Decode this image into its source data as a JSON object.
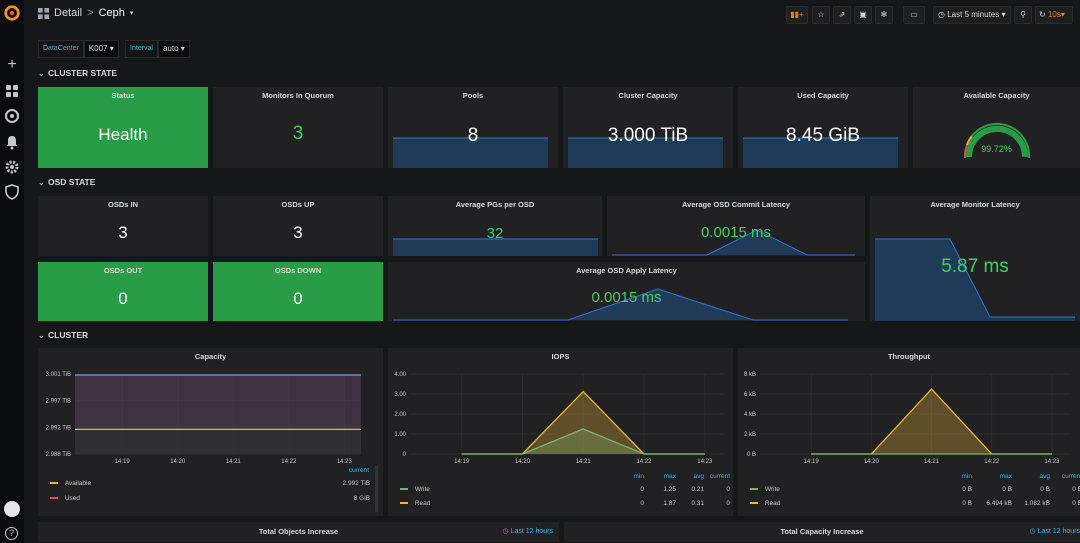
{
  "nav": {
    "breadcrumb_parent": "Detail",
    "breadcrumb_sep": ">",
    "breadcrumb_title": "Ceph",
    "time_range": "Last 5 minutes",
    "refresh_interval": "10s"
  },
  "vars": {
    "datacenter_label": "DataCenter",
    "datacenter_value": "K007",
    "interval_label": "Interval",
    "interval_value": "auto"
  },
  "rows": {
    "cluster_state": "CLUSTER STATE",
    "osd_state": "OSD STATE",
    "cluster": "CLUSTER"
  },
  "stat": {
    "status": {
      "title": "Status",
      "value": "Health"
    },
    "monitors": {
      "title": "Monitors In Quorum",
      "value": "3"
    },
    "pools": {
      "title": "Pools",
      "value": "8"
    },
    "capacity": {
      "title": "Cluster Capacity",
      "value": "3.000 TiB"
    },
    "used": {
      "title": "Used Capacity",
      "value": "8.45 GiB"
    },
    "available": {
      "title": "Available Capacity",
      "value": "99.72%",
      "fraction": 0.9972
    },
    "osds_in": {
      "title": "OSDs IN",
      "value": "3"
    },
    "osds_up": {
      "title": "OSDs UP",
      "value": "3"
    },
    "osds_out": {
      "title": "OSDs OUT",
      "value": "0"
    },
    "osds_down": {
      "title": "OSDs DOWN",
      "value": "0"
    },
    "avg_pgs": {
      "title": "Average PGs per OSD",
      "value": "32"
    },
    "commit_lat": {
      "title": "Average OSD Commit Latency",
      "value": "0.0015 ms"
    },
    "apply_lat": {
      "title": "Average OSD Apply Latency",
      "value": "0.0015 ms"
    },
    "monitor_lat": {
      "title": "Average Monitor Latency",
      "value": "5.87 ms"
    }
  },
  "graphs": {
    "capacity": {
      "title": "Capacity",
      "current_label": "current",
      "legend": [
        {
          "name": "Available",
          "color": "#eab839",
          "current": "2.992 TiB"
        },
        {
          "name": "Used",
          "color": "#e24d42",
          "current": "8 GiB"
        }
      ]
    },
    "iops": {
      "title": "IOPS",
      "headers": [
        "min",
        "max",
        "avg",
        "current"
      ],
      "legend": [
        {
          "name": "Write",
          "color": "#7eb26d",
          "min": "0",
          "max": "1.25",
          "avg": "0.21",
          "current": "0"
        },
        {
          "name": "Read",
          "color": "#eab839",
          "min": "0",
          "max": "1.87",
          "avg": "0.31",
          "current": "0"
        }
      ]
    },
    "throughput": {
      "title": "Throughput",
      "headers": [
        "min",
        "max",
        "avg",
        "current"
      ],
      "legend": [
        {
          "name": "Write",
          "color": "#7eb26d",
          "min": "0 B",
          "max": "0 B",
          "avg": "0 B",
          "current": "0 B"
        },
        {
          "name": "Read",
          "color": "#eab839",
          "min": "0 B",
          "max": "6.494 kB",
          "avg": "1.082 kB",
          "current": "0 B"
        }
      ]
    }
  },
  "bottom": {
    "objects_title": "Total Objects Increase",
    "objects_range": "Last 12 hours",
    "cap_title": "Total Capacity Increase",
    "cap_range": "Last 12 hours"
  },
  "chart_data": [
    {
      "type": "line",
      "title": "Capacity",
      "x": [
        "14:19",
        "14:20",
        "14:21",
        "14:22",
        "14:23"
      ],
      "ylim": [
        2.988,
        3.001
      ],
      "yticks": [
        "3.001 TiB",
        "2.997 TiB",
        "2.992 TiB",
        "2.988 TiB"
      ],
      "series": [
        {
          "name": "Available",
          "values": [
            2.992,
            2.992,
            2.992,
            2.992,
            2.992
          ]
        },
        {
          "name": "Used",
          "values": [
            0,
            0,
            0,
            0,
            0
          ]
        }
      ]
    },
    {
      "type": "area",
      "title": "IOPS",
      "x": [
        "14:19",
        "14:20",
        "14:21",
        "14:22",
        "14:23"
      ],
      "ylim": [
        0,
        4
      ],
      "yticks": [
        "4.00",
        "3.00",
        "2.00",
        "1.00",
        "0"
      ],
      "series": [
        {
          "name": "Write",
          "values": [
            0,
            0,
            1.25,
            0,
            0
          ]
        },
        {
          "name": "Read",
          "values": [
            0,
            0,
            3.12,
            0,
            0
          ]
        }
      ]
    },
    {
      "type": "area",
      "title": "Throughput",
      "x": [
        "14:19",
        "14:20",
        "14:21",
        "14:22",
        "14:23"
      ],
      "ylim": [
        0,
        8
      ],
      "yticks": [
        "8 kB",
        "6 kB",
        "4 kB",
        "2 kB",
        "0 B"
      ],
      "series": [
        {
          "name": "Write",
          "values": [
            0,
            0,
            0,
            0,
            0
          ]
        },
        {
          "name": "Read",
          "values": [
            0,
            0,
            6.494,
            0,
            0
          ]
        }
      ]
    }
  ]
}
